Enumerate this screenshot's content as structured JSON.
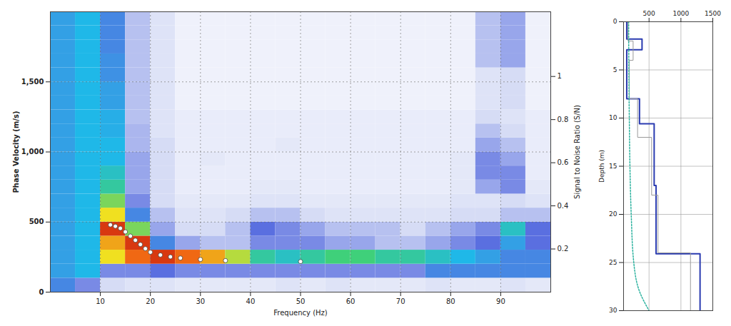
{
  "chart_data": [
    {
      "type": "heatmap",
      "x_label": "Frequency (Hz)",
      "y_label": "Phase Velocity (m/s)",
      "y2_label": "Signal to Noise Ratio (S/N)",
      "xlim": [
        0,
        100
      ],
      "xticks": [
        10,
        20,
        30,
        40,
        50,
        60,
        70,
        80,
        90
      ],
      "ylim": [
        0,
        2000
      ],
      "yticks": [
        0,
        500,
        {
          "value": 1000,
          "label": "1,000"
        },
        {
          "value": 1500,
          "label": "1,500"
        }
      ],
      "y2lim": [
        0,
        1.3
      ],
      "y2ticks": [
        0.2,
        0.4,
        0.6,
        0.8,
        1
      ],
      "grid": true,
      "x_edges": [
        0,
        5,
        10,
        15,
        20,
        25,
        30,
        35,
        40,
        45,
        50,
        55,
        60,
        65,
        70,
        75,
        80,
        85,
        90,
        95,
        100
      ],
      "y_edges": [
        0,
        100,
        200,
        300,
        400,
        500,
        600,
        700,
        800,
        900,
        1000,
        1100,
        1200,
        1300,
        1400,
        1500,
        1600,
        1700,
        1800,
        1900,
        2000
      ],
      "zlim": [
        0,
        1
      ],
      "cells": [
        [
          0.4,
          0.3,
          0.15,
          0.12,
          0.12,
          0.1,
          0.1,
          0.1,
          0.1,
          0.12,
          0.1,
          0.12,
          0.1,
          0.1,
          0.1,
          0.12,
          0.1,
          0.1,
          0.12,
          0.1
        ],
        [
          0.45,
          0.5,
          0.3,
          0.3,
          0.35,
          0.3,
          0.3,
          0.3,
          0.3,
          0.3,
          0.3,
          0.3,
          0.3,
          0.3,
          0.3,
          0.4,
          0.4,
          0.4,
          0.4,
          0.4
        ],
        [
          0.45,
          0.5,
          0.8,
          0.9,
          0.95,
          0.9,
          0.85,
          0.75,
          0.6,
          0.55,
          0.6,
          0.65,
          0.65,
          0.6,
          0.6,
          0.55,
          0.5,
          0.45,
          0.4,
          0.4
        ],
        [
          0.45,
          0.5,
          0.85,
          0.95,
          0.4,
          0.25,
          0.2,
          0.2,
          0.3,
          0.3,
          0.3,
          0.25,
          0.25,
          0.2,
          0.2,
          0.25,
          0.3,
          0.35,
          0.45,
          0.35
        ],
        [
          0.45,
          0.5,
          0.95,
          0.7,
          0.25,
          0.15,
          0.15,
          0.2,
          0.35,
          0.3,
          0.25,
          0.2,
          0.2,
          0.2,
          0.15,
          0.2,
          0.25,
          0.3,
          0.55,
          0.35
        ],
        [
          0.45,
          0.5,
          0.8,
          0.4,
          0.2,
          0.12,
          0.12,
          0.15,
          0.2,
          0.2,
          0.15,
          0.12,
          0.12,
          0.12,
          0.12,
          0.12,
          0.15,
          0.15,
          0.2,
          0.2
        ],
        [
          0.45,
          0.5,
          0.7,
          0.3,
          0.15,
          0.1,
          0.1,
          0.1,
          0.12,
          0.12,
          0.1,
          0.1,
          0.1,
          0.1,
          0.1,
          0.1,
          0.12,
          0.12,
          0.15,
          0.12
        ],
        [
          0.45,
          0.5,
          0.6,
          0.25,
          0.15,
          0.08,
          0.08,
          0.08,
          0.1,
          0.1,
          0.08,
          0.08,
          0.08,
          0.08,
          0.08,
          0.08,
          0.1,
          0.25,
          0.3,
          0.1
        ],
        [
          0.45,
          0.5,
          0.55,
          0.25,
          0.15,
          0.08,
          0.08,
          0.08,
          0.08,
          0.08,
          0.08,
          0.08,
          0.08,
          0.08,
          0.08,
          0.08,
          0.1,
          0.3,
          0.3,
          0.08
        ],
        [
          0.45,
          0.5,
          0.5,
          0.25,
          0.15,
          0.08,
          0.1,
          0.08,
          0.08,
          0.08,
          0.08,
          0.08,
          0.08,
          0.08,
          0.08,
          0.08,
          0.1,
          0.3,
          0.25,
          0.08
        ],
        [
          0.45,
          0.5,
          0.5,
          0.22,
          0.15,
          0.08,
          0.08,
          0.08,
          0.08,
          0.1,
          0.08,
          0.08,
          0.08,
          0.08,
          0.08,
          0.08,
          0.08,
          0.25,
          0.2,
          0.08
        ],
        [
          0.45,
          0.5,
          0.48,
          0.22,
          0.12,
          0.08,
          0.08,
          0.08,
          0.08,
          0.08,
          0.08,
          0.08,
          0.08,
          0.08,
          0.08,
          0.08,
          0.08,
          0.2,
          0.15,
          0.08
        ],
        [
          0.45,
          0.5,
          0.48,
          0.2,
          0.12,
          0.08,
          0.08,
          0.08,
          0.08,
          0.08,
          0.08,
          0.08,
          0.08,
          0.08,
          0.08,
          0.08,
          0.08,
          0.15,
          0.12,
          0.08
        ],
        [
          0.45,
          0.5,
          0.45,
          0.2,
          0.12,
          0.06,
          0.06,
          0.06,
          0.06,
          0.06,
          0.06,
          0.06,
          0.06,
          0.06,
          0.06,
          0.06,
          0.06,
          0.12,
          0.15,
          0.06
        ],
        [
          0.45,
          0.5,
          0.45,
          0.2,
          0.12,
          0.06,
          0.06,
          0.06,
          0.06,
          0.06,
          0.06,
          0.06,
          0.06,
          0.06,
          0.06,
          0.06,
          0.06,
          0.12,
          0.15,
          0.06
        ],
        [
          0.45,
          0.5,
          0.42,
          0.2,
          0.12,
          0.06,
          0.06,
          0.06,
          0.06,
          0.06,
          0.06,
          0.06,
          0.06,
          0.06,
          0.06,
          0.06,
          0.06,
          0.12,
          0.15,
          0.06
        ],
        [
          0.45,
          0.5,
          0.42,
          0.2,
          0.12,
          0.06,
          0.06,
          0.06,
          0.06,
          0.06,
          0.06,
          0.06,
          0.06,
          0.06,
          0.06,
          0.06,
          0.06,
          0.2,
          0.25,
          0.06
        ],
        [
          0.45,
          0.5,
          0.4,
          0.2,
          0.12,
          0.06,
          0.06,
          0.06,
          0.06,
          0.06,
          0.06,
          0.06,
          0.06,
          0.06,
          0.06,
          0.06,
          0.06,
          0.2,
          0.25,
          0.06
        ],
        [
          0.45,
          0.5,
          0.4,
          0.2,
          0.12,
          0.06,
          0.06,
          0.06,
          0.06,
          0.06,
          0.06,
          0.06,
          0.06,
          0.06,
          0.06,
          0.06,
          0.06,
          0.2,
          0.25,
          0.06
        ],
        [
          0.45,
          0.5,
          0.4,
          0.2,
          0.12,
          0.06,
          0.06,
          0.06,
          0.06,
          0.06,
          0.06,
          0.06,
          0.06,
          0.06,
          0.06,
          0.06,
          0.06,
          0.2,
          0.25,
          0.06
        ]
      ],
      "picks": {
        "x": [
          12,
          13,
          14,
          15,
          16,
          17,
          18,
          19,
          20,
          22,
          24,
          26,
          30,
          35,
          50
        ],
        "values": [
          480,
          470,
          455,
          430,
          400,
          370,
          340,
          310,
          285,
          265,
          252,
          243,
          233,
          225,
          218
        ],
        "color": "#ffffff",
        "marker": "circle"
      }
    },
    {
      "type": "profile",
      "y_label": "Depth (m)",
      "xlim": [
        100,
        1500
      ],
      "xticks": [
        500,
        1000,
        1500
      ],
      "ylim": [
        0,
        30
      ],
      "yticks": [
        0,
        5,
        10,
        15,
        20,
        25,
        30
      ],
      "grid": true,
      "series": [
        {
          "color": "#2a3bb0",
          "line_style": "solid",
          "depth_top": [
            0,
            1.8,
            2.9,
            8.0,
            10.6,
            17,
            24.1
          ],
          "depth_bottom": [
            1.8,
            2.9,
            8.0,
            10.6,
            17,
            24.1,
            30
          ],
          "vs": [
            150,
            390,
            150,
            350,
            580,
            610,
            1300
          ]
        },
        {
          "color": "#9a9a9a",
          "line_style": "solid",
          "depth_top": [
            0,
            2,
            4,
            8,
            12,
            18,
            24
          ],
          "depth_bottom": [
            2,
            4,
            8,
            12,
            18,
            24,
            30
          ],
          "vs": [
            170,
            250,
            190,
            320,
            540,
            640,
            1150
          ]
        }
      ],
      "curve": {
        "color": "#2fb3a0",
        "line_style": "dotted",
        "depth": [
          0,
          5,
          10,
          15,
          20,
          25,
          28,
          30
        ],
        "vs": [
          180,
          183,
          190,
          200,
          220,
          260,
          350,
          500
        ]
      }
    }
  ]
}
